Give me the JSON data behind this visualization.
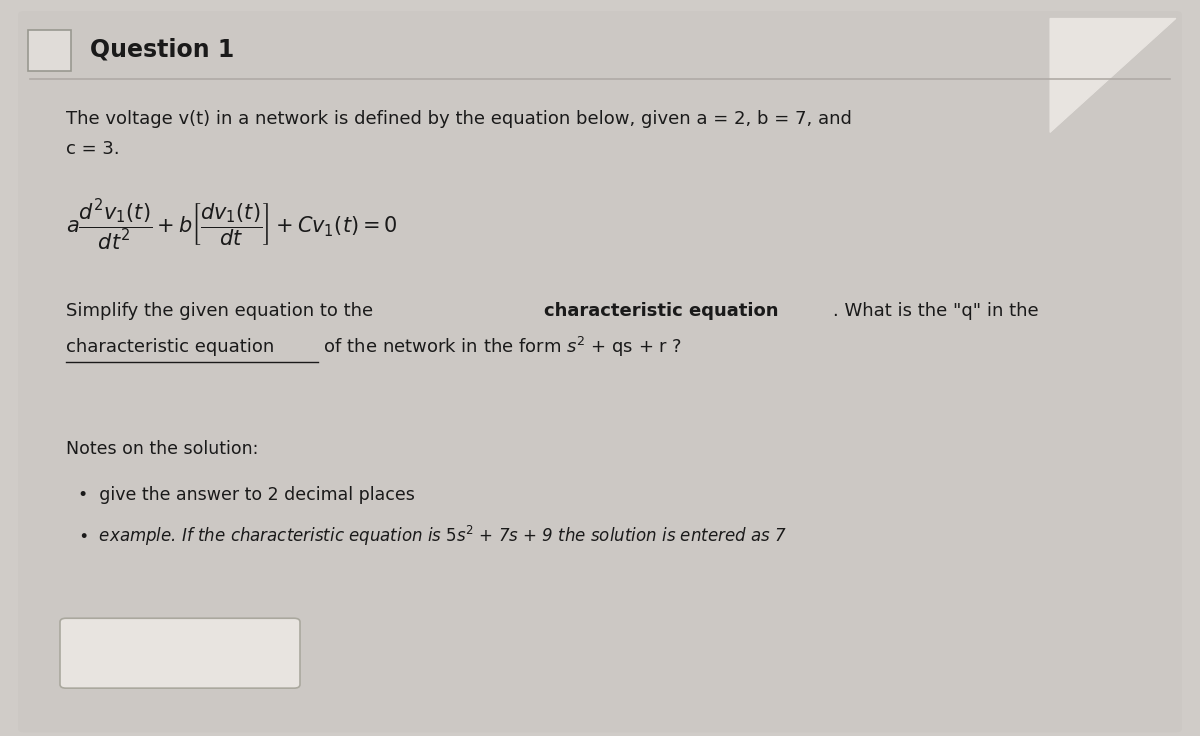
{
  "title": "Question 1",
  "bg_color": "#d0ccc8",
  "card_color": "#ccc8c4",
  "title_color": "#1a1a1a",
  "text_color": "#1a1a1a",
  "intro_line1": "The voltage v(t) in a network is defined by the equation below, given a = 2, b = 7, and",
  "intro_line2": "c = 3.",
  "equation": "$a\\dfrac{d^2v_1(t)}{dt^2} + b\\left[\\dfrac{dv_1(t)}{dt}\\right] + Cv_1(t) = 0$",
  "q_line1_pre": "Simplify the given equation to the ",
  "q_line1_bold": "characteristic equation",
  "q_line1_post": ". What is the \"q\" in the",
  "q_line2_underline": "characteristic equation",
  "q_line2_rest": " of the network in the form $s^2$ + qs + r ?",
  "notes_header": "Notes on the solution:",
  "bullet_1": "•  give the answer to 2 decimal places",
  "bullet_2_pre": "•  example. If the characteristic equation is ",
  "bullet_2_math": "$5s^2$",
  "bullet_2_post": " + 7s + 9 the solution is entered as 7",
  "input_box_color": "#e8e4e0",
  "top_right_color": "#b8b4b0",
  "left_checkbox_color": "#e0dcd8",
  "divider_color": "#b0aba6"
}
